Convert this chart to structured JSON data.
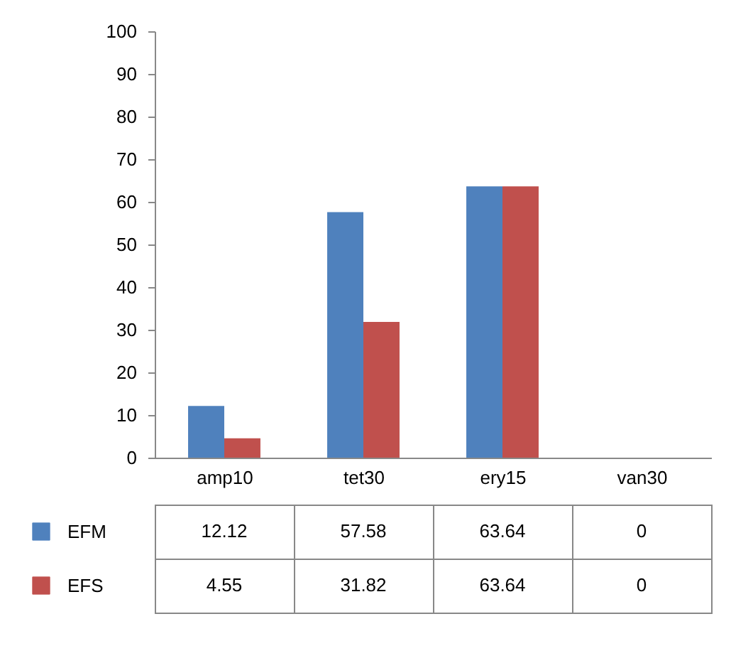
{
  "chart_data": {
    "type": "bar",
    "categories": [
      "amp10",
      "tet30",
      "ery15",
      "van30"
    ],
    "series": [
      {
        "name": "EFM",
        "color": "#4f81bd",
        "values": [
          12.12,
          57.58,
          63.64,
          0
        ]
      },
      {
        "name": "EFS",
        "color": "#c0504d",
        "values": [
          4.55,
          31.82,
          63.64,
          0
        ]
      }
    ],
    "ylim": [
      0,
      100
    ],
    "yticks": [
      0,
      10,
      20,
      30,
      40,
      50,
      60,
      70,
      80,
      90,
      100
    ],
    "data_labels": true,
    "legend": "bottom",
    "grid": false
  }
}
